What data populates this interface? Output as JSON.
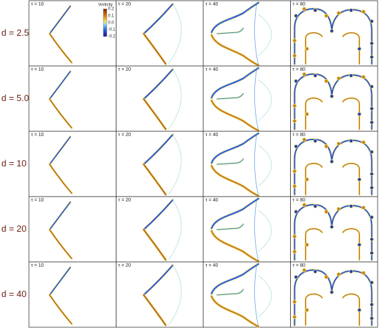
{
  "rows": [
    {
      "label": "d = 2.5",
      "panels": [
        "τ = 10",
        "τ = 20",
        "τ = 40",
        "τ = 80"
      ]
    },
    {
      "label": "d = 5.0",
      "panels": [
        "τ = 10",
        "τ = 20",
        "τ = 40",
        "τ = 80"
      ]
    },
    {
      "label": "d = 10",
      "panels": [
        "τ = 10",
        "τ = 20",
        "τ = 40",
        "τ = 80"
      ]
    },
    {
      "label": "d = 20",
      "panels": [
        "τ = 10",
        "τ = 20",
        "τ = 40",
        "τ = 80"
      ]
    },
    {
      "label": "d = 40",
      "panels": [
        "τ = 10",
        "τ = 20",
        "τ = 40",
        "τ = 80"
      ]
    }
  ],
  "colorbar": {
    "title": "Vorticity",
    "ticks": [
      "0.2",
      "0.1",
      "0.0",
      "-0.1",
      "-0.2"
    ]
  }
}
